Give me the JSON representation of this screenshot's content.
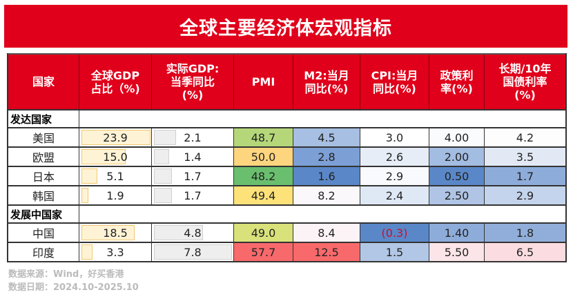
{
  "title": "全球主要经济体宏观指标",
  "headers": [
    "国家",
    "全球GDP\n占比（%)",
    "实际GDP:\n当季同比\n(%)",
    "PMI",
    "M2:当月\n同比(%)",
    "CPI:当月\n同比(%)",
    "政策利\n率(%)",
    "长期/10年\n国债利率\n(%)"
  ],
  "groups": [
    {
      "label": "发达国家",
      "rows": [
        {
          "country": "美国",
          "gdp_share": "23.9",
          "gdp_share_fraction": 1.0,
          "real_gdp": "2.1",
          "real_gdp_fraction": 0.27,
          "pmi": "48.7",
          "pmi_color": "#b5d77a",
          "m2": "4.5",
          "m2_color": "#a6bfe2",
          "cpi": "3.0",
          "cpi_color": "#ffffff",
          "policy": "4.00",
          "policy_color": "#fafbfd",
          "bond": "4.2",
          "bond_color": "#fdfdfe"
        },
        {
          "country": "欧盟",
          "gdp_share": "15.0",
          "gdp_share_fraction": 0.63,
          "real_gdp": "1.4",
          "real_gdp_fraction": 0.18,
          "pmi": "50.0",
          "pmi_color": "#fdd57e",
          "m2": "2.8",
          "m2_color": "#7c9fd5",
          "cpi": "2.6",
          "cpi_color": "#e6edf7",
          "policy": "2.00",
          "policy_color": "#a3bce1",
          "bond": "3.5",
          "bond_color": "#e2e9f5"
        },
        {
          "country": "日本",
          "gdp_share": "5.1",
          "gdp_share_fraction": 0.21,
          "real_gdp": "1.7",
          "real_gdp_fraction": 0.22,
          "pmi": "48.2",
          "pmi_color": "#6abf6e",
          "m2": "1.6",
          "m2_color": "#5a87c8",
          "cpi": "2.9",
          "cpi_color": "#f8fafd",
          "policy": "0.50",
          "policy_color": "#5a87c8",
          "bond": "1.7",
          "bond_color": "#8eacd9"
        },
        {
          "country": "韩国",
          "gdp_share": "1.9",
          "gdp_share_fraction": 0.08,
          "real_gdp": "1.7",
          "real_gdp_fraction": 0.22,
          "pmi": "49.4",
          "pmi_color": "#fde27a",
          "m2": "8.2",
          "m2_color": "#fbf8fb",
          "cpi": "2.4",
          "cpi_color": "#dfe8f5",
          "policy": "2.50",
          "policy_color": "#b0c5e5",
          "bond": "2.9",
          "bond_color": "#c4d4ec"
        }
      ]
    },
    {
      "label": "发展中国家",
      "rows": [
        {
          "country": "中国",
          "gdp_share": "18.5",
          "gdp_share_fraction": 0.77,
          "real_gdp": "4.8",
          "real_gdp_fraction": 0.62,
          "pmi": "49.0",
          "pmi_color": "#d9e17a",
          "m2": "8.4",
          "m2_color": "#fbf3f5",
          "cpi": "(0.3)",
          "cpi_color": "#5a87c8",
          "cpi_text_color": "#c8102e",
          "policy": "1.40",
          "policy_color": "#8eacd9",
          "bond": "1.8",
          "bond_color": "#90aed9"
        },
        {
          "country": "印度",
          "gdp_share": "3.3",
          "gdp_share_fraction": 0.14,
          "real_gdp": "7.8",
          "real_gdp_fraction": 1.0,
          "pmi": "57.7",
          "pmi_color": "#f8696b",
          "m2": "12.5",
          "m2_color": "#f8696b",
          "cpi": "1.5",
          "cpi_color": "#b2c7e6",
          "policy": "5.50",
          "policy_color": "#fce5e8",
          "bond": "6.5",
          "bond_color": "#fbdde1"
        }
      ]
    }
  ],
  "footer": {
    "source": "数据来源：Wind，好买香港",
    "date": "数据日期：2024.10-2025.10"
  }
}
